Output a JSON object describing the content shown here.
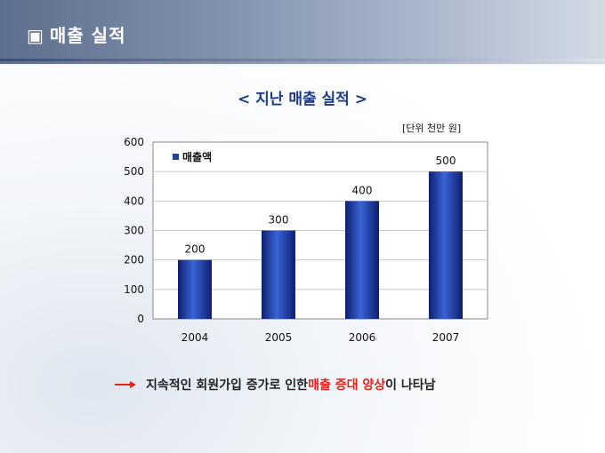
{
  "header": {
    "box_icon": "▣",
    "title": "매출 실적"
  },
  "chart_title": "< 지난 매출 실적 >",
  "unit_label": "[단위 천만 원]",
  "colors": {
    "bar": "#1f3fa8",
    "highlight": "#e8221a",
    "title": "#1a3a8a"
  },
  "chart_data": {
    "type": "bar",
    "categories": [
      "2004",
      "2005",
      "2006",
      "2007"
    ],
    "series": [
      {
        "name": "매출액",
        "values": [
          200,
          300,
          400,
          500
        ]
      }
    ],
    "ylim": [
      0,
      600
    ],
    "yticks": [
      "0",
      "100",
      "200",
      "300",
      "400",
      "500",
      "600"
    ],
    "data_labels": [
      "200",
      "300",
      "400",
      "500"
    ],
    "grid": true,
    "legend": "top-left"
  },
  "footer": {
    "icon": "arrow-right",
    "text_before": "지속적인 회원가입 증가로 인한 ",
    "highlight": "매출 증대 양상",
    "text_after": "이 나타남"
  }
}
